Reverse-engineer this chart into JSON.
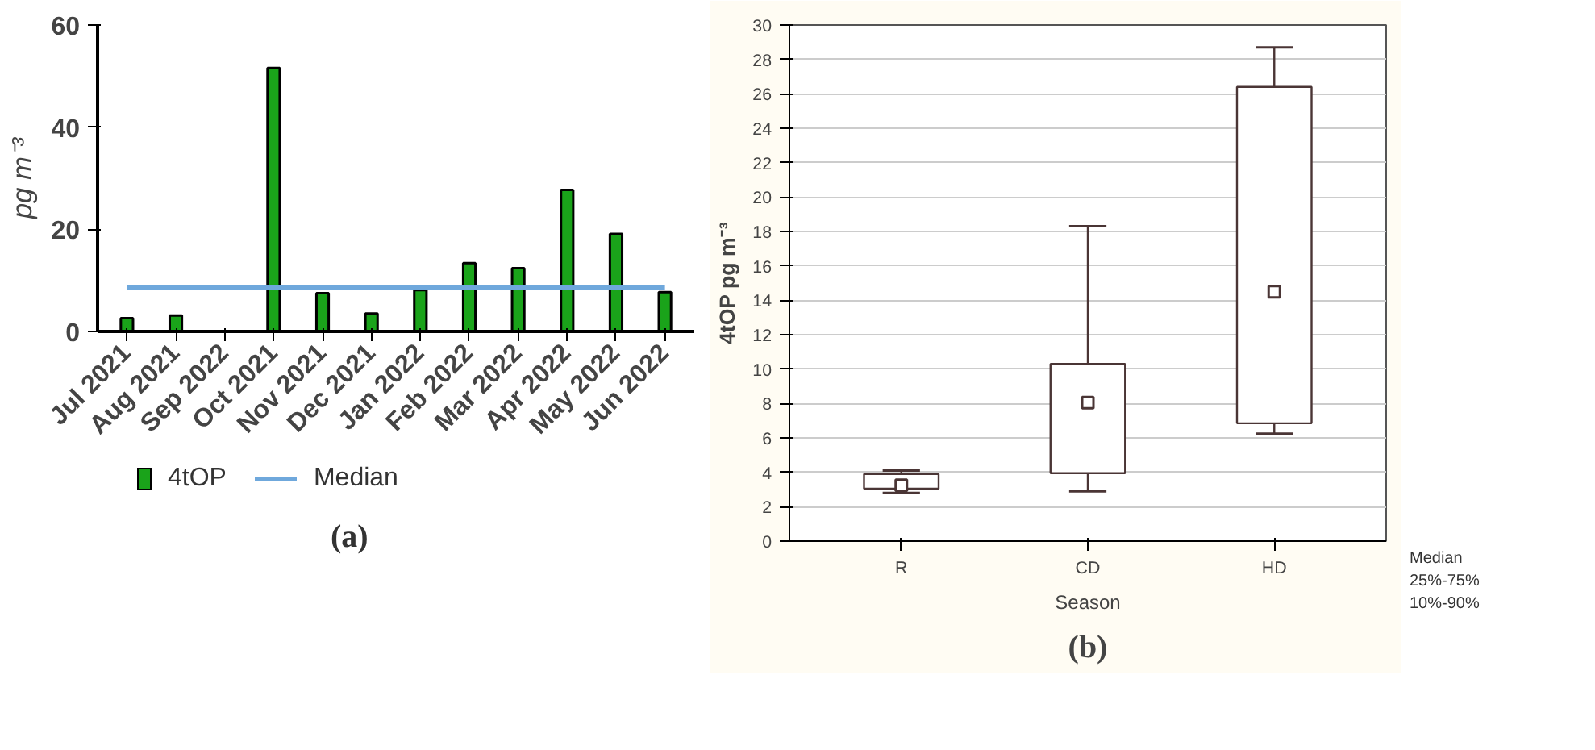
{
  "chart_data": [
    {
      "type": "bar",
      "title": "(a)",
      "ylabel": "pg m⁻³",
      "categories": [
        "Jul 2021",
        "Aug 2021",
        "Sep 2022",
        "Oct 2021",
        "Nov 2021",
        "Dec 2021",
        "Jan 2022",
        "Feb 2022",
        "Mar 2022",
        "Apr 2022",
        "May 2022",
        "Jun 2022"
      ],
      "series": [
        {
          "name": "4tOP",
          "color": "#1aa31a",
          "values": [
            2.6,
            3.1,
            null,
            51.6,
            7.5,
            3.5,
            8.1,
            13.4,
            12.4,
            27.7,
            19.1,
            7.7
          ]
        },
        {
          "name": "Median",
          "type": "line",
          "color": "#6fa8dc",
          "values": [
            8.6,
            8.6,
            8.6,
            8.6,
            8.6,
            8.6,
            8.6,
            8.6,
            8.6,
            8.6,
            8.6,
            8.6
          ]
        }
      ],
      "ylim": [
        0,
        60
      ],
      "yticks": [
        0,
        20,
        40,
        60
      ],
      "grid": false,
      "legend": "bottom"
    },
    {
      "type": "box",
      "title": "(b)",
      "xlabel": "Season",
      "ylabel": "4tOP pg m⁻³",
      "categories": [
        "R",
        "CD",
        "HD"
      ],
      "boxes": [
        {
          "low": 2.8,
          "q1": 3.05,
          "median": 3.25,
          "q3": 3.9,
          "high": 4.1
        },
        {
          "low": 2.9,
          "q1": 3.95,
          "median": 8.05,
          "q3": 10.3,
          "high": 18.3
        },
        {
          "low": 6.25,
          "q1": 6.85,
          "median": 14.5,
          "q3": 26.4,
          "high": 28.7
        }
      ],
      "annotations": [
        "Median",
        "25%-75%",
        "10%-90%"
      ],
      "ylim": [
        0,
        30
      ],
      "yticks": [
        0,
        2,
        4,
        6,
        8,
        10,
        12,
        14,
        16,
        18,
        20,
        22,
        24,
        26,
        28,
        30
      ],
      "grid": "y"
    }
  ]
}
